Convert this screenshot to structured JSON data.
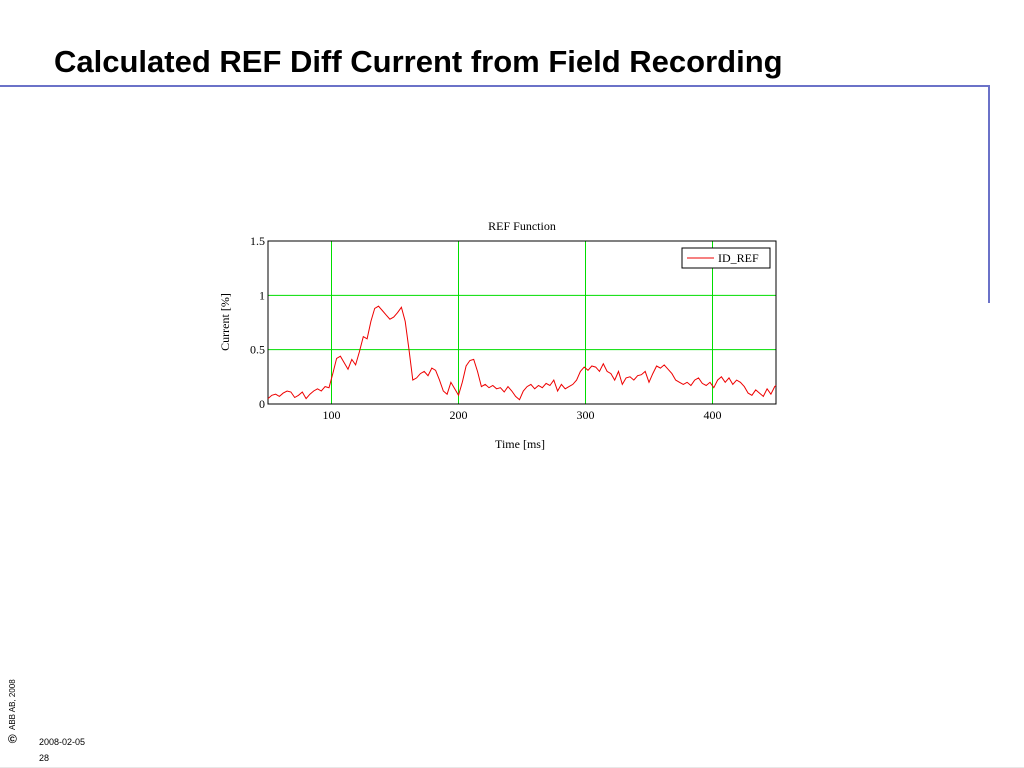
{
  "slide": {
    "title": "Calculated REF Diff Current from Field Recording",
    "footer": {
      "copyright_symbol": "©",
      "copyright_text": "ABB AB,  2008",
      "date": "2008-02-05",
      "page_number": "28"
    },
    "colors": {
      "rule": "#6b72c8"
    }
  },
  "chart_data": {
    "type": "line",
    "title": "REF Function",
    "xlabel": "Time [ms]",
    "ylabel": "Current [%]",
    "xlim": [
      50,
      450
    ],
    "ylim": [
      0,
      1.5
    ],
    "xticks": [
      100,
      200,
      300,
      400
    ],
    "yticks": [
      0,
      0.5,
      1,
      1.5
    ],
    "grid": true,
    "grid_color": "#00dd00",
    "legend_position": "top-right",
    "series": [
      {
        "name": "ID_REF",
        "color": "#ee0000",
        "x": [
          50,
          53,
          56,
          59,
          62,
          65,
          68,
          71,
          74,
          77,
          80,
          83,
          86,
          89,
          92,
          95,
          98,
          101,
          104,
          107,
          110,
          113,
          116,
          119,
          122,
          125,
          128,
          131,
          134,
          137,
          140,
          143,
          146,
          149,
          152,
          155,
          158,
          161,
          164,
          167,
          170,
          173,
          176,
          179,
          182,
          185,
          188,
          191,
          194,
          197,
          200,
          203,
          206,
          209,
          212,
          215,
          218,
          221,
          224,
          227,
          230,
          233,
          236,
          239,
          242,
          245,
          248,
          251,
          254,
          257,
          260,
          263,
          266,
          269,
          272,
          275,
          278,
          281,
          284,
          287,
          290,
          293,
          296,
          299,
          302,
          305,
          308,
          311,
          314,
          317,
          320,
          323,
          326,
          329,
          332,
          335,
          338,
          341,
          344,
          347,
          350,
          353,
          356,
          359,
          362,
          365,
          368,
          371,
          374,
          377,
          380,
          383,
          386,
          389,
          392,
          395,
          398,
          401,
          404,
          407,
          410,
          413,
          416,
          419,
          422,
          425,
          428,
          431,
          434,
          437,
          440,
          443,
          446,
          449,
          450
        ],
        "y": [
          0.05,
          0.08,
          0.09,
          0.07,
          0.1,
          0.12,
          0.11,
          0.06,
          0.08,
          0.11,
          0.05,
          0.09,
          0.12,
          0.14,
          0.12,
          0.16,
          0.15,
          0.28,
          0.42,
          0.44,
          0.38,
          0.32,
          0.41,
          0.36,
          0.48,
          0.62,
          0.6,
          0.76,
          0.88,
          0.9,
          0.86,
          0.82,
          0.78,
          0.8,
          0.84,
          0.89,
          0.76,
          0.5,
          0.22,
          0.24,
          0.28,
          0.3,
          0.26,
          0.33,
          0.31,
          0.22,
          0.12,
          0.09,
          0.2,
          0.14,
          0.08,
          0.2,
          0.35,
          0.4,
          0.41,
          0.3,
          0.16,
          0.18,
          0.15,
          0.17,
          0.14,
          0.15,
          0.11,
          0.16,
          0.12,
          0.07,
          0.04,
          0.12,
          0.16,
          0.18,
          0.14,
          0.17,
          0.15,
          0.19,
          0.17,
          0.22,
          0.12,
          0.18,
          0.14,
          0.16,
          0.18,
          0.22,
          0.3,
          0.34,
          0.31,
          0.35,
          0.34,
          0.3,
          0.37,
          0.3,
          0.28,
          0.22,
          0.3,
          0.18,
          0.24,
          0.25,
          0.22,
          0.26,
          0.27,
          0.3,
          0.2,
          0.28,
          0.35,
          0.33,
          0.36,
          0.32,
          0.28,
          0.22,
          0.2,
          0.18,
          0.2,
          0.17,
          0.22,
          0.24,
          0.19,
          0.17,
          0.2,
          0.15,
          0.22,
          0.25,
          0.2,
          0.24,
          0.18,
          0.22,
          0.2,
          0.16,
          0.1,
          0.08,
          0.13,
          0.1,
          0.07,
          0.14,
          0.09,
          0.16,
          0.17
        ]
      }
    ]
  }
}
